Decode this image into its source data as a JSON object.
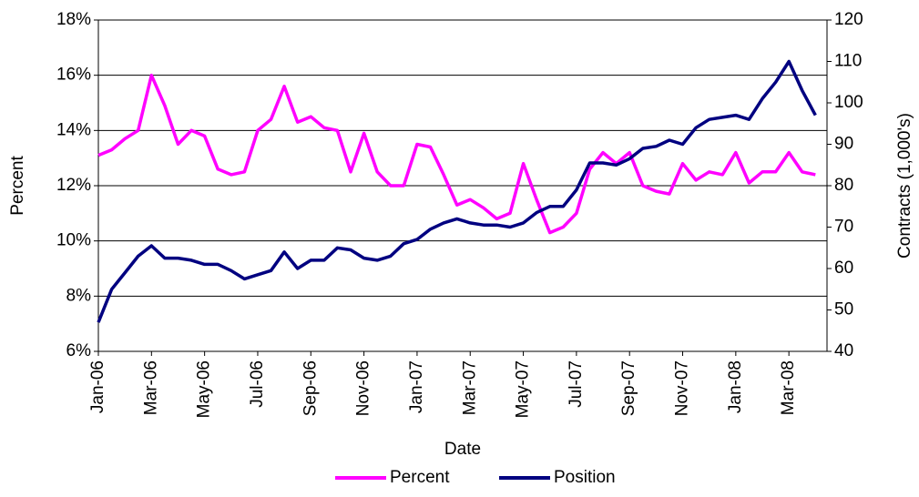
{
  "chart_data": {
    "type": "line",
    "xlabel": "Date",
    "ylabel": "Percent",
    "y2label": "Contracts (1,000's)",
    "categories": [
      "Jan-06",
      null,
      null,
      null,
      "Mar-06",
      null,
      null,
      null,
      "May-06",
      null,
      null,
      null,
      "Jul-06",
      null,
      null,
      null,
      "Sep-06",
      null,
      null,
      null,
      "Nov-06",
      null,
      null,
      null,
      "Jan-07",
      null,
      null,
      null,
      "Mar-07",
      null,
      null,
      null,
      "May-07",
      null,
      null,
      null,
      "Jul-07",
      null,
      null,
      null,
      "Sep-07",
      null,
      null,
      null,
      "Nov-07",
      null,
      null,
      null,
      "Jan-08",
      null,
      null,
      null,
      "Mar-08",
      null,
      null
    ],
    "series": [
      {
        "name": "Percent",
        "color": "#ff00ff",
        "values": [
          13.1,
          13.3,
          13.7,
          14.0,
          16.0,
          14.9,
          13.5,
          14.0,
          13.8,
          12.6,
          12.4,
          12.5,
          14.0,
          14.4,
          15.6,
          14.3,
          14.5,
          14.1,
          14.0,
          12.5,
          13.9,
          12.5,
          12.0,
          12.0,
          13.5,
          13.4,
          12.4,
          11.3,
          11.5,
          11.2,
          10.8,
          11.0,
          12.8,
          11.5,
          10.3,
          10.5,
          11.0,
          12.6,
          13.2,
          12.8,
          13.2,
          12.0,
          11.8,
          11.7,
          12.8,
          12.2,
          12.5,
          12.4,
          13.2,
          12.1,
          12.5,
          12.5,
          13.2,
          12.5,
          12.4
        ]
      },
      {
        "name": "Position",
        "color": "#000080",
        "axis": "y2",
        "values": [
          47,
          55,
          59,
          63,
          65.5,
          62.5,
          62.5,
          62,
          61,
          61,
          59.5,
          57.5,
          58.5,
          59.5,
          64,
          60,
          62,
          62,
          65,
          64.5,
          62.5,
          62,
          63,
          66,
          67,
          69.5,
          71,
          72,
          71,
          70.5,
          70.5,
          70,
          71,
          73.5,
          75,
          75,
          79,
          85.5,
          85.5,
          85,
          86.5,
          89,
          89.5,
          91,
          90,
          94,
          96,
          96.5,
          97,
          96,
          101,
          105,
          110,
          103,
          97
        ]
      }
    ],
    "ylim": [
      6,
      18
    ],
    "yticks": [
      {
        "value": 6,
        "label": "6%"
      },
      {
        "value": 8,
        "label": "8%"
      },
      {
        "value": 10,
        "label": "10%"
      },
      {
        "value": 12,
        "label": "12%"
      },
      {
        "value": 14,
        "label": "14%"
      },
      {
        "value": 16,
        "label": "16%"
      },
      {
        "value": 18,
        "label": "18%"
      }
    ],
    "y2lim": [
      40,
      120
    ],
    "y2ticks": [
      40,
      50,
      60,
      70,
      80,
      90,
      100,
      110,
      120
    ],
    "grid": true,
    "legend": "bottom"
  }
}
